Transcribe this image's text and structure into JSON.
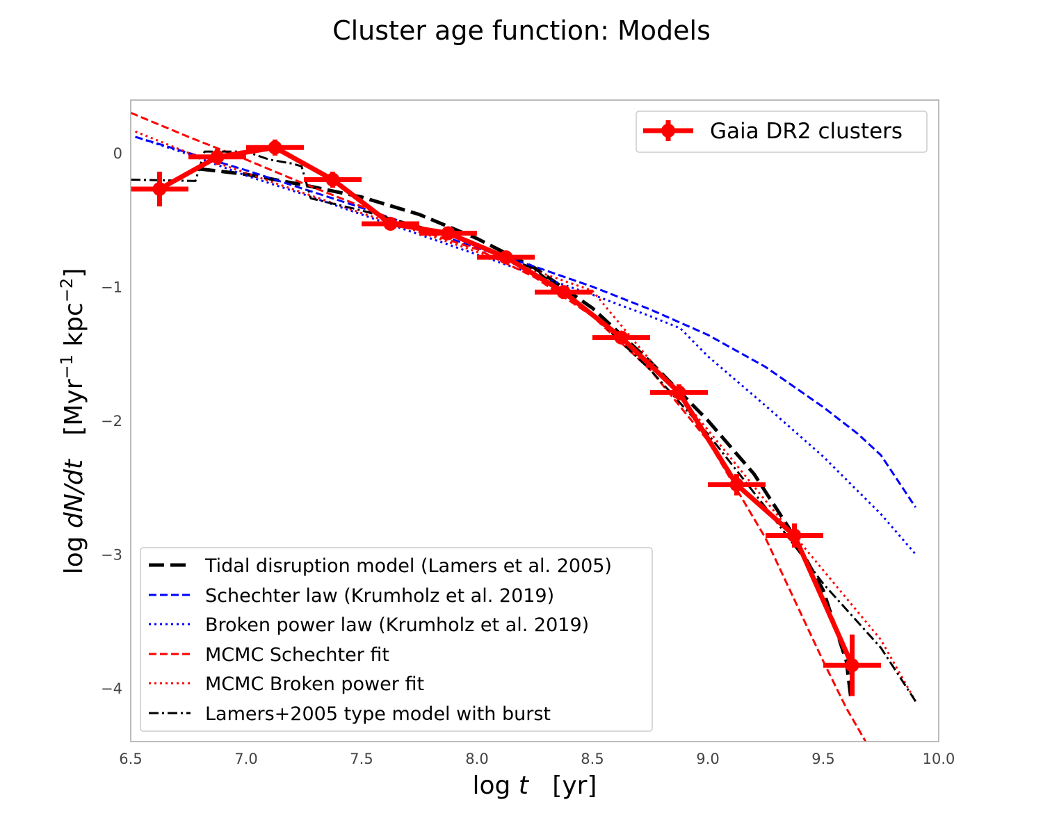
{
  "chart_data": {
    "type": "line",
    "title": "Cluster age function: Models",
    "xlabel": "log t   [yr]",
    "ylabel": "log dN/dt   [Myr−1 kpc−2]",
    "xlim": [
      6.5,
      10.0
    ],
    "ylim": [
      -4.4,
      0.4
    ],
    "x_ticks": [
      6.5,
      7.0,
      7.5,
      8.0,
      8.5,
      9.0,
      9.5,
      10.0
    ],
    "x_tick_labels": [
      "6.5",
      "7.0",
      "7.5",
      "8.0",
      "8.5",
      "9.0",
      "9.5",
      "10.0"
    ],
    "y_ticks": [
      0,
      -1,
      -2,
      -3,
      -4
    ],
    "y_tick_labels": [
      "0",
      "−1",
      "−2",
      "−3",
      "−4"
    ],
    "grid": false,
    "legends": {
      "upper": {
        "placement": "top-right",
        "entries": [
          "Gaia DR2 clusters"
        ]
      },
      "lower": {
        "placement": "bottom-left",
        "entries": [
          "Tidal disruption model (Lamers et al. 2005)",
          "Schechter law (Krumholz et al. 2019)",
          "Broken power law (Krumholz et al. 2019)",
          "MCMC Schechter fit",
          "MCMC Broken power fit",
          "Lamers+2005 type model with burst"
        ]
      }
    },
    "series": [
      {
        "name": "Gaia DR2 clusters",
        "style": "errorbar",
        "color": "#ff0000",
        "x": [
          6.625,
          6.875,
          7.125,
          7.375,
          7.625,
          7.875,
          8.125,
          8.375,
          8.625,
          8.875,
          9.125,
          9.375,
          9.625
        ],
        "y": [
          -0.27,
          -0.03,
          0.04,
          -0.2,
          -0.53,
          -0.6,
          -0.78,
          -1.04,
          -1.38,
          -1.79,
          -2.48,
          -2.86,
          -3.83
        ],
        "xerr": 0.125,
        "yerr": [
          0.13,
          0.06,
          0.06,
          0.06,
          0.04,
          0.04,
          0.05,
          0.05,
          0.05,
          0.06,
          0.08,
          0.09,
          0.23
        ]
      },
      {
        "name": "Tidal disruption model (Lamers et al. 2005)",
        "style": "dashed-thick",
        "color": "#000000",
        "x": [
          6.8,
          7.0,
          7.25,
          7.5,
          7.75,
          8.0,
          8.25,
          8.5,
          8.75,
          9.0,
          9.2,
          9.35,
          9.5,
          9.6,
          9.62
        ],
        "y": [
          -0.12,
          -0.16,
          -0.24,
          -0.33,
          -0.46,
          -0.64,
          -0.86,
          -1.16,
          -1.56,
          -2.0,
          -2.4,
          -2.8,
          -3.27,
          -3.8,
          -4.08
        ]
      },
      {
        "name": "Schechter law (Krumholz et al. 2019)",
        "style": "dashed",
        "color": "#0000ff",
        "x": [
          6.52,
          6.75,
          7.0,
          7.25,
          7.5,
          7.75,
          8.0,
          8.25,
          8.5,
          8.75,
          9.0,
          9.25,
          9.5,
          9.65,
          9.75,
          9.9
        ],
        "y": [
          0.12,
          0.0,
          -0.13,
          -0.27,
          -0.41,
          -0.56,
          -0.71,
          -0.85,
          -1.0,
          -1.17,
          -1.36,
          -1.6,
          -1.9,
          -2.1,
          -2.26,
          -2.65
        ]
      },
      {
        "name": "Broken power law (Krumholz et al. 2019)",
        "style": "dotted",
        "color": "#0000ff",
        "x": [
          6.52,
          6.75,
          7.0,
          7.25,
          7.5,
          7.75,
          8.0,
          8.25,
          8.5,
          8.75,
          8.88,
          9.0,
          9.25,
          9.5,
          9.75,
          9.9
        ],
        "y": [
          0.12,
          -0.01,
          -0.17,
          -0.31,
          -0.46,
          -0.61,
          -0.76,
          -0.91,
          -1.06,
          -1.22,
          -1.31,
          -1.52,
          -1.89,
          -2.27,
          -2.7,
          -3.0
        ]
      },
      {
        "name": "MCMC Schechter fit",
        "style": "dashed",
        "color": "#ff0000",
        "x": [
          6.5,
          6.75,
          7.0,
          7.25,
          7.5,
          7.75,
          8.0,
          8.25,
          8.5,
          8.75,
          9.0,
          9.25,
          9.5,
          9.6,
          9.7
        ],
        "y": [
          0.3,
          0.12,
          -0.05,
          -0.23,
          -0.4,
          -0.58,
          -0.72,
          -0.93,
          -1.22,
          -1.62,
          -2.15,
          -2.88,
          -3.8,
          -4.15,
          -4.45
        ]
      },
      {
        "name": "MCMC Broken power fit",
        "style": "dotted",
        "color": "#ff0000",
        "x": [
          6.52,
          6.75,
          7.0,
          7.25,
          7.5,
          7.75,
          8.0,
          8.25,
          8.5,
          8.75,
          9.0,
          9.25,
          9.5,
          9.75,
          9.9
        ],
        "y": [
          0.16,
          0.0,
          -0.15,
          -0.3,
          -0.45,
          -0.59,
          -0.74,
          -0.88,
          -1.03,
          -1.55,
          -2.07,
          -2.6,
          -3.12,
          -3.64,
          -4.1
        ]
      },
      {
        "name": "Lamers+2005 type model with burst",
        "style": "dashdot",
        "color": "#000000",
        "x": [
          6.5,
          6.78,
          6.82,
          7.0,
          7.1,
          7.2,
          7.24,
          7.28,
          7.5,
          7.75,
          8.0,
          8.25,
          8.5,
          8.75,
          9.0,
          9.25,
          9.5,
          9.75,
          9.9
        ],
        "y": [
          -0.2,
          -0.21,
          0.01,
          0.01,
          -0.05,
          -0.08,
          -0.1,
          -0.34,
          -0.43,
          -0.55,
          -0.68,
          -0.87,
          -1.21,
          -1.62,
          -2.1,
          -2.65,
          -3.22,
          -3.7,
          -4.1
        ]
      }
    ]
  }
}
